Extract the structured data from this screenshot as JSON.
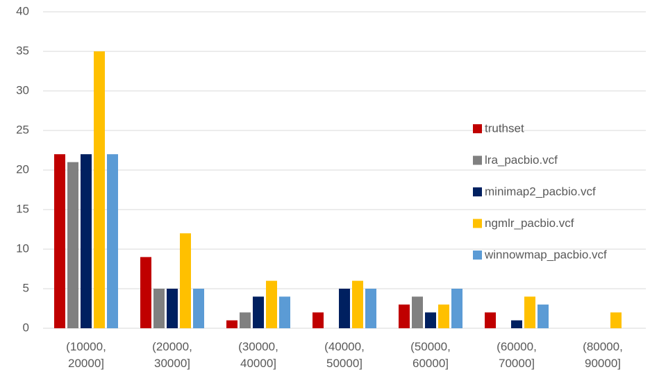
{
  "chart_data": {
    "type": "bar",
    "categories": [
      "(10000, 20000]",
      "(20000, 30000]",
      "(30000, 40000]",
      "(40000, 50000]",
      "(50000, 60000]",
      "(60000, 70000]",
      "(80000, 90000]"
    ],
    "series": [
      {
        "name": "truthset",
        "color": "#c00000",
        "values": [
          22,
          9,
          1,
          2,
          3,
          2,
          0
        ]
      },
      {
        "name": "lra_pacbio.vcf",
        "color": "#808080",
        "values": [
          21,
          5,
          2,
          0,
          4,
          0,
          0
        ]
      },
      {
        "name": "minimap2_pacbio.vcf",
        "color": "#002060",
        "values": [
          22,
          5,
          4,
          5,
          2,
          1,
          0
        ]
      },
      {
        "name": "ngmlr_pacbio.vcf",
        "color": "#ffc000",
        "values": [
          35,
          12,
          6,
          6,
          3,
          4,
          2
        ]
      },
      {
        "name": "winnowmap_pacbio.vcf",
        "color": "#5b9bd5",
        "values": [
          22,
          5,
          4,
          5,
          5,
          3,
          0
        ]
      }
    ],
    "ylim": [
      0,
      40
    ],
    "yticks": [
      0,
      5,
      10,
      15,
      20,
      25,
      30,
      35,
      40
    ],
    "grid": true,
    "legend": "right"
  }
}
